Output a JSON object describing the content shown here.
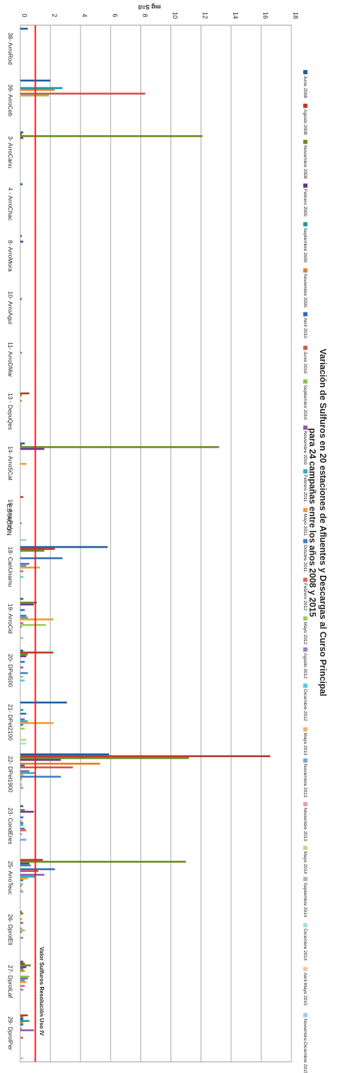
{
  "chart_data": {
    "type": "bar",
    "orientation": "horizontal",
    "title": "Variación de Sulfuros en 20 estaciones de Afluentes y Descargas al Curso Principal para 24 campañas entre los años 2008 y 2015",
    "xlabel": "mg S=/l",
    "ylabel": "ESTACIÓN",
    "xlim": [
      0,
      18
    ],
    "xticks": [
      "0",
      "2",
      "4",
      "6",
      "8",
      "10",
      "12",
      "14",
      "16",
      "18"
    ],
    "grid": true,
    "legend_position": "right",
    "categories": [
      "38- ArroRod",
      "39- ArroCeb",
      "3- ArroCanu",
      "4 - ArroChac",
      "8- ArroMora",
      "10- ArroAgui",
      "11- ArroDMar",
      "13 - DepuQes",
      "14- ArroSCat",
      "16- ArroRey",
      "18- CanUnamu",
      "19- ArroCid",
      "20- DPel500",
      "21- DPel2100",
      "22- DPel1900",
      "23- CondEres",
      "25- ArroTeuc",
      "26- DprolEli",
      "27- DprolLaf",
      "29- DprolPer"
    ],
    "reference_line": {
      "label": "Valor Sulfuros Resolución Uso IV",
      "value": 1,
      "color": "#e02020"
    },
    "series": [
      {
        "name": "Junio 2008",
        "color": "#1f5f9e"
      },
      {
        "name": "Agosto 2008",
        "color": "#c0392b"
      },
      {
        "name": "Noviembre 2008",
        "color": "#6b8e23"
      },
      {
        "name": "Febrero 2009",
        "color": "#6b3a8a"
      },
      {
        "name": "Septiembre 2009",
        "color": "#1a9aa8"
      },
      {
        "name": "Noviembre 2009",
        "color": "#e67e22"
      },
      {
        "name": "Abril 2010",
        "color": "#2e6fb8"
      },
      {
        "name": "Junio 2010",
        "color": "#d9534f"
      },
      {
        "name": "Septiembre 2010",
        "color": "#8bc34a"
      },
      {
        "name": "Noviembre 2010",
        "color": "#8e5ba6"
      },
      {
        "name": "Febrero 2011",
        "color": "#26b5c4"
      },
      {
        "name": "Mayo 2011",
        "color": "#f39c33"
      },
      {
        "name": "Octubre 2011",
        "color": "#3f80c6"
      },
      {
        "name": "Febrero 2012",
        "color": "#e06666"
      },
      {
        "name": "Mayo 2012",
        "color": "#9ccc65"
      },
      {
        "name": "Agosto 2012",
        "color": "#a17ac0"
      },
      {
        "name": "Diciembre 2012",
        "color": "#4dd0e1"
      },
      {
        "name": "Mayo 2013",
        "color": "#f5b066"
      },
      {
        "name": "Noviembre 2013",
        "color": "#7aa6d8"
      },
      {
        "name": "Noviembre 2013",
        "color": "#ec9a9a"
      },
      {
        "name": "Mayo 2014",
        "color": "#b8dc8a"
      },
      {
        "name": "Septiembre 2014",
        "color": "#c2a8d6"
      },
      {
        "name": "Diciembre 2014",
        "color": "#9fe0ea"
      },
      {
        "name": "Abril-Mayo 2015",
        "color": "#f7c89a"
      },
      {
        "name": "Noviembre-Diciembre 2015",
        "color": "#aac6e8"
      }
    ],
    "values": [
      [
        0.5,
        0,
        0,
        0,
        0,
        0,
        0,
        0,
        0,
        0,
        0,
        0,
        0,
        0,
        0,
        0,
        0,
        0,
        0,
        0,
        0,
        0,
        0,
        0,
        0
      ],
      [
        2.0,
        0,
        0,
        0,
        2.8,
        2.3,
        0,
        8.3,
        1.9,
        0,
        0,
        0,
        0,
        0,
        0,
        0,
        0,
        0,
        0,
        0,
        0,
        0,
        0,
        0,
        0
      ],
      [
        0.2,
        0.1,
        12.1,
        0.2,
        0,
        0,
        0,
        0,
        0,
        0,
        0,
        0,
        0,
        0,
        0,
        0,
        0,
        0,
        0,
        0,
        0,
        0,
        0,
        0,
        0
      ],
      [
        0.15,
        0,
        0,
        0,
        0,
        0,
        0,
        0,
        0,
        0,
        0,
        0,
        0,
        0,
        0,
        0,
        0,
        0,
        0,
        0,
        0,
        0,
        0,
        0,
        0
      ],
      [
        0.1,
        0,
        0,
        0.2,
        0,
        0,
        0,
        0,
        0,
        0,
        0,
        0,
        0,
        0,
        0,
        0,
        0,
        0,
        0,
        0,
        0,
        0,
        0,
        0,
        0
      ],
      [
        0,
        0,
        0,
        0,
        0,
        0,
        0.1,
        0,
        0,
        0,
        0,
        0,
        0,
        0,
        0,
        0,
        0,
        0,
        0,
        0,
        0,
        0,
        0,
        0,
        0
      ],
      [
        0,
        0,
        0,
        0,
        0,
        0,
        0,
        0.1,
        0,
        0,
        0,
        0,
        0,
        0,
        0,
        0,
        0,
        0,
        0,
        0,
        0,
        0,
        0,
        0,
        0
      ],
      [
        0,
        0.6,
        0.1,
        0,
        0,
        0.1,
        0,
        0,
        0,
        0,
        0,
        0,
        0,
        0,
        0,
        0,
        0,
        0,
        0,
        0,
        0,
        0,
        0,
        0,
        0
      ],
      [
        0.3,
        0.1,
        13.2,
        1.6,
        0,
        0,
        0,
        0,
        0,
        0,
        0,
        0.4,
        0,
        0,
        0,
        0,
        0,
        0,
        0,
        0,
        0,
        0,
        0,
        0,
        0
      ],
      [
        0,
        0.2,
        0,
        0,
        0,
        0,
        0,
        0,
        0,
        0,
        0,
        0,
        0,
        0,
        0,
        0.1,
        0,
        0,
        0,
        0,
        0,
        0,
        0,
        0,
        0.4
      ],
      [
        5.8,
        2.3,
        1.6,
        0,
        0,
        0,
        2.8,
        0,
        0,
        0.6,
        0.4,
        1.3,
        0,
        0.2,
        0,
        0,
        0.2,
        0,
        0,
        0,
        0,
        0,
        0,
        0,
        0
      ],
      [
        0.2,
        0,
        1.1,
        0.9,
        0,
        0,
        0.3,
        0,
        0,
        0.4,
        0.5,
        2.2,
        0,
        0.2,
        1.7,
        0.1,
        0,
        0,
        0,
        0,
        0,
        0.2,
        0,
        0,
        0
      ],
      [
        0.2,
        2.2,
        0.5,
        0.4,
        0,
        0,
        0.3,
        0,
        0,
        0.2,
        0,
        0,
        0.5,
        0,
        0.2,
        0,
        0.3,
        0,
        0,
        0,
        0,
        0,
        0,
        0,
        0
      ],
      [
        3.1,
        0,
        0,
        0,
        0.2,
        0,
        0.4,
        0,
        0,
        0.3,
        0.5,
        2.2,
        0.2,
        0,
        0.3,
        0,
        0,
        0,
        0,
        0,
        0.4,
        0,
        0.4,
        0,
        0
      ],
      [
        5.9,
        16.6,
        11.2,
        2.7,
        0,
        5.3,
        0.3,
        3.5,
        0,
        0.6,
        1.0,
        0.2,
        2.7,
        0.1,
        0.1,
        0,
        0.1,
        0.1,
        0.2,
        0,
        0,
        0,
        0,
        0,
        0
      ],
      [
        0.2,
        0,
        0.3,
        0.9,
        0,
        0,
        0.2,
        0,
        0.1,
        0.2,
        0.2,
        0,
        0.3,
        0.4,
        0,
        0.1,
        0,
        0,
        0.4,
        0,
        0,
        0,
        0,
        0,
        0
      ],
      [
        0,
        1.5,
        11.0,
        0.6,
        0.7,
        0,
        2.3,
        1.2,
        0,
        1.6,
        1.0,
        0.5,
        0.2,
        0,
        0.2,
        0.1,
        0,
        0.1,
        0.2,
        0,
        0,
        0,
        0,
        0,
        0
      ],
      [
        0,
        0.1,
        0.2,
        0,
        0,
        0.1,
        0,
        0.2,
        0,
        0,
        0.1,
        0.3,
        0.1,
        0,
        0,
        0.2,
        0,
        0,
        0,
        0,
        0,
        0,
        0,
        0,
        0
      ],
      [
        0.2,
        0.3,
        0.7,
        0.4,
        0.2,
        0.3,
        0,
        0,
        0.6,
        0.5,
        0.3,
        0.4,
        0,
        0.3,
        0,
        0.2,
        0,
        0,
        0,
        0,
        0,
        0,
        0,
        0,
        0
      ],
      [
        0,
        0.5,
        0.2,
        0.2,
        0.6,
        0.2,
        0.2,
        0,
        0.1,
        0.9,
        0,
        0,
        0,
        0.2,
        0,
        0,
        0,
        0,
        0,
        0,
        0,
        0,
        0,
        0,
        0.2
      ]
    ]
  }
}
